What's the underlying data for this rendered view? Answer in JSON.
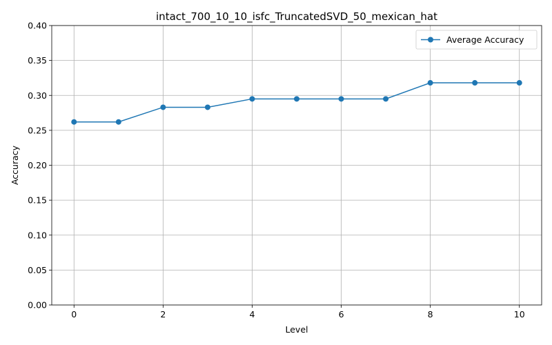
{
  "chart_data": {
    "type": "line",
    "title": "intact_700_10_10_isfc_TruncatedSVD_50_mexican_hat",
    "xlabel": "Level",
    "ylabel": "Accuracy",
    "xlim": [
      -0.5,
      10.5
    ],
    "ylim": [
      0.0,
      0.4
    ],
    "xticks": [
      0,
      2,
      4,
      6,
      8,
      10
    ],
    "xtick_labels": [
      "0",
      "2",
      "4",
      "6",
      "8",
      "10"
    ],
    "yticks": [
      0.0,
      0.05,
      0.1,
      0.15,
      0.2,
      0.25,
      0.3,
      0.35,
      0.4
    ],
    "ytick_labels": [
      "0.00",
      "0.05",
      "0.10",
      "0.15",
      "0.20",
      "0.25",
      "0.30",
      "0.35",
      "0.40"
    ],
    "grid": true,
    "legend_position": "top-right",
    "series": [
      {
        "name": "Average Accuracy",
        "color": "#1f77b4",
        "marker": "circle",
        "x": [
          0,
          1,
          2,
          3,
          4,
          5,
          6,
          7,
          8,
          9,
          10
        ],
        "y": [
          0.262,
          0.262,
          0.283,
          0.283,
          0.295,
          0.295,
          0.295,
          0.295,
          0.318,
          0.318,
          0.318
        ]
      }
    ]
  }
}
